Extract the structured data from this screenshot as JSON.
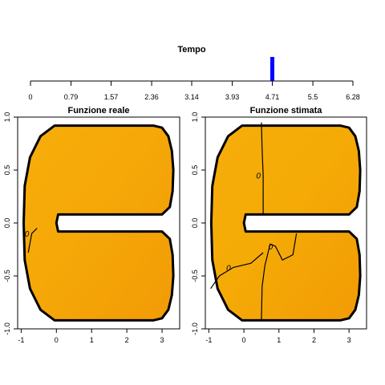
{
  "timeline": {
    "title": "Tempo",
    "tick_labels": [
      "0",
      "0.79",
      "1.57",
      "2.36",
      "3.14",
      "3.93",
      "4.71",
      "5.5",
      "6.28"
    ],
    "tick_values": [
      0,
      0.79,
      1.57,
      2.36,
      3.14,
      3.93,
      4.71,
      5.5,
      6.28
    ],
    "range": [
      0,
      6.28
    ],
    "current_value": 4.71,
    "marker_color": "#0000ff"
  },
  "chart_data": [
    {
      "type": "heatmap",
      "title": "Funzione reale",
      "xlim": [
        -1.1,
        3.5
      ],
      "ylim": [
        -1.0,
        1.0
      ],
      "x_ticks": [
        -1,
        0,
        1,
        2,
        3
      ],
      "x_tick_labels": [
        "-1",
        "0",
        "1",
        "2",
        "3"
      ],
      "y_ticks": [
        -1.0,
        -0.5,
        0.0,
        0.5,
        1.0
      ],
      "y_tick_labels": [
        "-1.0",
        "-0.5",
        "0.0",
        "0.5",
        "1.0"
      ],
      "fill_color": "#f5a808",
      "contours": [
        {
          "level": "0",
          "points": [
            [
              -0.8,
              -0.28
            ],
            [
              -0.7,
              -0.1
            ],
            [
              -0.55,
              -0.05
            ]
          ]
        }
      ]
    },
    {
      "type": "heatmap",
      "title": "Funzione stimata",
      "xlim": [
        -1.1,
        3.5
      ],
      "ylim": [
        -1.0,
        1.0
      ],
      "x_ticks": [
        -1,
        0,
        1,
        2,
        3
      ],
      "x_tick_labels": [
        "-1",
        "0",
        "1",
        "2",
        "3"
      ],
      "y_ticks": [
        -1.0,
        -0.5,
        0.0,
        0.5,
        1.0
      ],
      "y_tick_labels": [
        "-1.0",
        "-0.5",
        "0.0",
        "0.5",
        "1.0"
      ],
      "fill_color": "#f5ab06",
      "contours": [
        {
          "level": "0",
          "points": [
            [
              0.5,
              0.95
            ],
            [
              0.52,
              0.7
            ],
            [
              0.55,
              0.45
            ],
            [
              0.55,
              0.2
            ],
            [
              0.55,
              0.08
            ]
          ]
        },
        {
          "level": "0",
          "points": [
            [
              -0.95,
              -0.62
            ],
            [
              -0.7,
              -0.5
            ],
            [
              -0.3,
              -0.42
            ],
            [
              0.2,
              -0.38
            ],
            [
              0.55,
              -0.28
            ]
          ]
        },
        {
          "level": "0",
          "points": [
            [
              0.5,
              -0.93
            ],
            [
              0.52,
              -0.6
            ],
            [
              0.6,
              -0.4
            ],
            [
              0.75,
              -0.2
            ],
            [
              0.9,
              -0.22
            ],
            [
              1.1,
              -0.35
            ],
            [
              1.4,
              -0.3
            ],
            [
              1.5,
              -0.1
            ]
          ]
        }
      ]
    }
  ]
}
